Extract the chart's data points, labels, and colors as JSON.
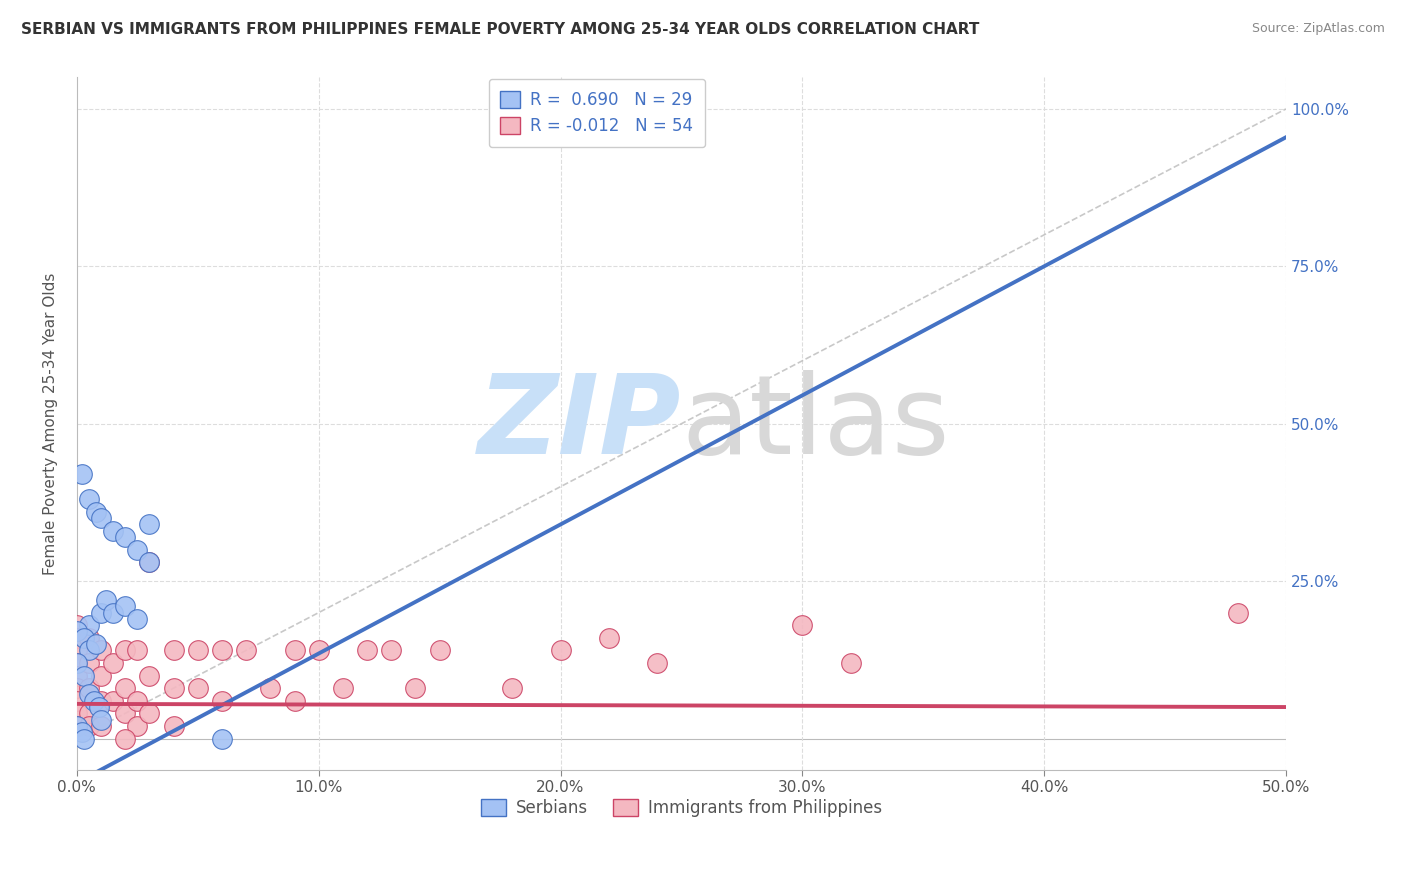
{
  "title": "SERBIAN VS IMMIGRANTS FROM PHILIPPINES FEMALE POVERTY AMONG 25-34 YEAR OLDS CORRELATION CHART",
  "source": "Source: ZipAtlas.com",
  "ylabel": "Female Poverty Among 25-34 Year Olds",
  "legend_serbian_R": "0.690",
  "legend_serbian_N": "29",
  "legend_phil_R": "-0.012",
  "legend_phil_N": "54",
  "serbian_color": "#a4c2f4",
  "serbian_edge": "#4472c4",
  "phil_color": "#f4b8c1",
  "phil_edge": "#cc4466",
  "trendline_serbian_color": "#4472c4",
  "trendline_phil_color": "#cc4466",
  "diag_line_color": "#bbbbbb",
  "grid_color": "#dddddd",
  "watermark_zip_color": "#c8e0f8",
  "watermark_atlas_color": "#d8d8d8",
  "xmin": 0.0,
  "xmax": 0.5,
  "ymin": -0.05,
  "ymax": 1.05,
  "serbian_trendline": [
    -0.07,
    2.05
  ],
  "phil_trendline": [
    0.055,
    -0.01
  ],
  "serbian_scatter": [
    [
      0.002,
      0.42
    ],
    [
      0.005,
      0.38
    ],
    [
      0.008,
      0.36
    ],
    [
      0.01,
      0.35
    ],
    [
      0.015,
      0.33
    ],
    [
      0.02,
      0.32
    ],
    [
      0.025,
      0.3
    ],
    [
      0.03,
      0.34
    ],
    [
      0.03,
      0.28
    ],
    [
      0.005,
      0.18
    ],
    [
      0.01,
      0.2
    ],
    [
      0.012,
      0.22
    ],
    [
      0.015,
      0.2
    ],
    [
      0.02,
      0.21
    ],
    [
      0.025,
      0.19
    ],
    [
      0.0,
      0.17
    ],
    [
      0.003,
      0.16
    ],
    [
      0.005,
      0.14
    ],
    [
      0.008,
      0.15
    ],
    [
      0.0,
      0.12
    ],
    [
      0.003,
      0.1
    ],
    [
      0.005,
      0.07
    ],
    [
      0.007,
      0.06
    ],
    [
      0.009,
      0.05
    ],
    [
      0.01,
      0.03
    ],
    [
      0.0,
      0.02
    ],
    [
      0.002,
      0.01
    ],
    [
      0.003,
      0.0
    ],
    [
      0.06,
      0.0
    ]
  ],
  "phil_scatter": [
    [
      0.0,
      0.18
    ],
    [
      0.0,
      0.16
    ],
    [
      0.0,
      0.14
    ],
    [
      0.0,
      0.12
    ],
    [
      0.0,
      0.1
    ],
    [
      0.0,
      0.08
    ],
    [
      0.0,
      0.06
    ],
    [
      0.0,
      0.04
    ],
    [
      0.0,
      0.02
    ],
    [
      0.005,
      0.16
    ],
    [
      0.005,
      0.12
    ],
    [
      0.005,
      0.08
    ],
    [
      0.005,
      0.04
    ],
    [
      0.005,
      0.02
    ],
    [
      0.01,
      0.14
    ],
    [
      0.01,
      0.1
    ],
    [
      0.01,
      0.06
    ],
    [
      0.01,
      0.02
    ],
    [
      0.015,
      0.12
    ],
    [
      0.015,
      0.06
    ],
    [
      0.02,
      0.14
    ],
    [
      0.02,
      0.08
    ],
    [
      0.02,
      0.04
    ],
    [
      0.025,
      0.14
    ],
    [
      0.025,
      0.06
    ],
    [
      0.025,
      0.02
    ],
    [
      0.03,
      0.28
    ],
    [
      0.03,
      0.1
    ],
    [
      0.03,
      0.04
    ],
    [
      0.04,
      0.14
    ],
    [
      0.04,
      0.08
    ],
    [
      0.04,
      0.02
    ],
    [
      0.05,
      0.14
    ],
    [
      0.05,
      0.08
    ],
    [
      0.06,
      0.14
    ],
    [
      0.06,
      0.06
    ],
    [
      0.07,
      0.14
    ],
    [
      0.08,
      0.08
    ],
    [
      0.09,
      0.14
    ],
    [
      0.09,
      0.06
    ],
    [
      0.1,
      0.14
    ],
    [
      0.11,
      0.08
    ],
    [
      0.12,
      0.14
    ],
    [
      0.13,
      0.14
    ],
    [
      0.14,
      0.08
    ],
    [
      0.15,
      0.14
    ],
    [
      0.18,
      0.08
    ],
    [
      0.2,
      0.14
    ],
    [
      0.22,
      0.16
    ],
    [
      0.24,
      0.12
    ],
    [
      0.3,
      0.18
    ],
    [
      0.32,
      0.12
    ],
    [
      0.48,
      0.2
    ],
    [
      0.02,
      0.0
    ]
  ]
}
